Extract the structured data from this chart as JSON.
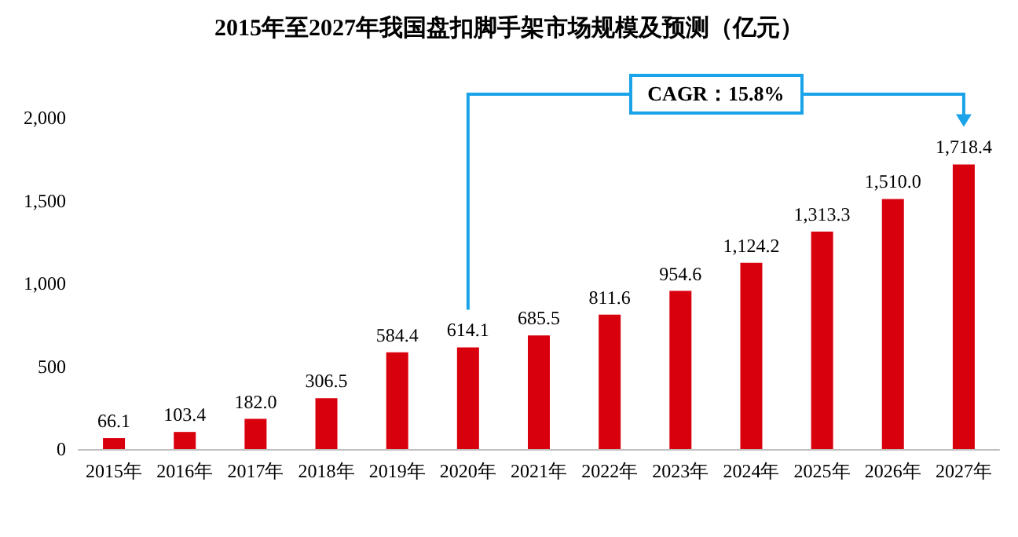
{
  "chart_data": {
    "type": "bar",
    "title": "2015年至2027年我国盘扣脚手架市场规模及预测（亿元）",
    "categories": [
      "2015年",
      "2016年",
      "2017年",
      "2018年",
      "2019年",
      "2020年",
      "2021年",
      "2022年",
      "2023年",
      "2024年",
      "2025年",
      "2026年",
      "2027年"
    ],
    "values": [
      66.1,
      103.4,
      182.0,
      306.5,
      584.4,
      614.1,
      685.5,
      811.6,
      954.6,
      1124.2,
      1313.3,
      1510.0,
      1718.4
    ],
    "value_labels": [
      "66.1",
      "103.4",
      "182.0",
      "306.5",
      "584.4",
      "614.1",
      "685.5",
      "811.6",
      "954.6",
      "1,124.2",
      "1,313.3",
      "1,510.0",
      "1,718.4"
    ],
    "color": "#d9000d",
    "ylim": [
      0,
      2000
    ],
    "yticks": [
      0,
      500,
      {
        "value": 1000,
        "label": "1,000"
      },
      {
        "value": 1500,
        "label": "1,500"
      },
      {
        "value": 2000,
        "label": "2,000"
      }
    ],
    "grid": false,
    "annotations": [
      "CAGR：15.8%"
    ]
  }
}
